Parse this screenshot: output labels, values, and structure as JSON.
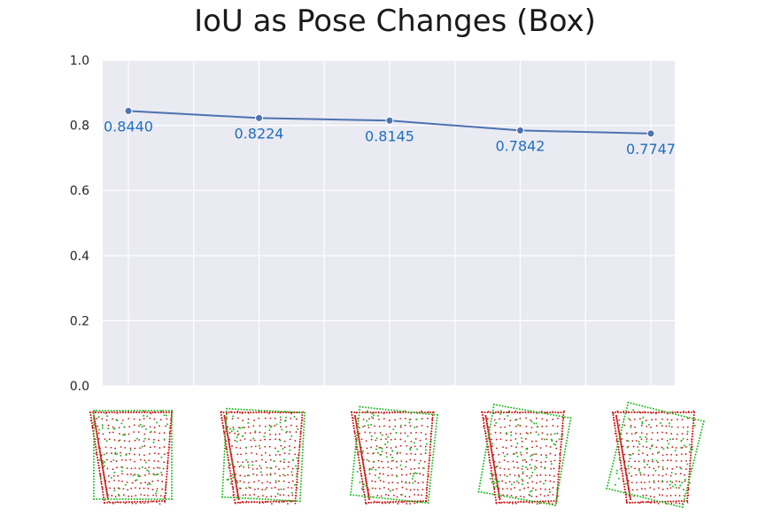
{
  "chart_data": {
    "type": "line",
    "title": "IoU as Pose Changes (Box)",
    "xlabel": "",
    "ylabel": "",
    "ylim": [
      0,
      1.0
    ],
    "yticks": [
      "0.0",
      "0.2",
      "0.4",
      "0.6",
      "0.8",
      "1.0"
    ],
    "series": [
      {
        "values": [
          0.844,
          0.8224,
          0.8145,
          0.7842,
          0.7747
        ],
        "labels": [
          "0.8440",
          "0.8224",
          "0.8145",
          "0.7842",
          "0.7747"
        ]
      }
    ],
    "grid": true,
    "colors": {
      "line": "#4c72b0",
      "label": "#1f6fbf",
      "background": "#eaeaf2",
      "grid": "#ffffff",
      "points_red": "#cc1111",
      "points_green": "#22bb22"
    },
    "x_axis_images": [
      "box-pose-1",
      "box-pose-2",
      "box-pose-3",
      "box-pose-4",
      "box-pose-5"
    ],
    "image_rotation_deg": [
      0,
      3,
      6,
      10,
      14
    ]
  }
}
